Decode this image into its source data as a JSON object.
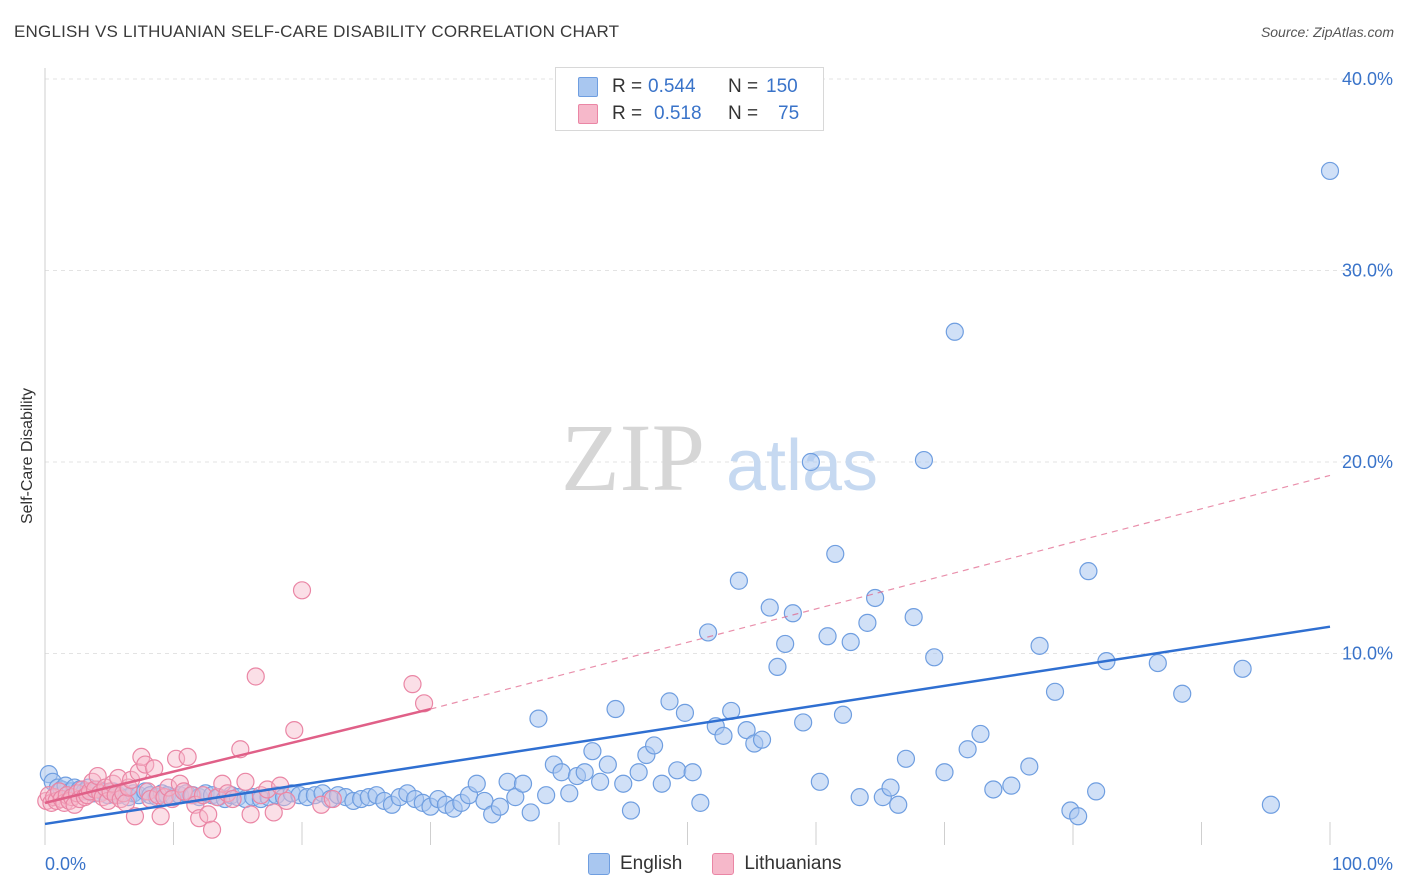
{
  "title": "ENGLISH VS LITHUANIAN SELF-CARE DISABILITY CORRELATION CHART",
  "source": "Source: ZipAtlas.com",
  "watermark": {
    "zip": "ZIP",
    "atlas": "atlas"
  },
  "legend": {
    "english": {
      "r_label": "R =",
      "r_value": "0.544",
      "n_label": "N =",
      "n_value": "150"
    },
    "lithuanian": {
      "r_label": "R =",
      "r_value": "0.518",
      "n_label": "N =",
      "n_value": "75"
    }
  },
  "bottom_legend": {
    "english": "English",
    "lithuanian": "Lithuanians"
  },
  "colors": {
    "english_fill": "#a9c7f0",
    "english_stroke": "#6f9ee0",
    "english_line": "#2f6fd1",
    "lith_fill": "#f6b8ca",
    "lith_stroke": "#ea86a5",
    "lith_line": "#e06088",
    "tick_blue": "#3973c9",
    "grid": "#e3e3e3"
  },
  "chart_data": {
    "type": "scatter",
    "title": "ENGLISH VS LITHUANIAN SELF-CARE DISABILITY CORRELATION CHART",
    "xlabel": "",
    "ylabel": "Self-Care Disability",
    "xlim": [
      0,
      100
    ],
    "ylim": [
      0,
      41
    ],
    "x_tick_labels": [
      "0.0%",
      "100.0%"
    ],
    "y_ticks": [
      10,
      20,
      30,
      40
    ],
    "y_tick_labels": [
      "10.0%",
      "20.0%",
      "30.0%",
      "40.0%"
    ],
    "grid": true,
    "legend_position": "top-center",
    "series": [
      {
        "name": "English",
        "r": 0.544,
        "n": 150,
        "trend": {
          "x": [
            0,
            100
          ],
          "y": [
            1.1,
            11.4
          ]
        },
        "points": [
          [
            0.3,
            3.7
          ],
          [
            0.6,
            3.3
          ],
          [
            1.0,
            3.0
          ],
          [
            1.3,
            2.9
          ],
          [
            1.6,
            3.1
          ],
          [
            2.0,
            2.8
          ],
          [
            2.3,
            3.0
          ],
          [
            2.7,
            2.9
          ],
          [
            3.1,
            2.8
          ],
          [
            3.4,
            3.0
          ],
          [
            3.8,
            2.7
          ],
          [
            4.1,
            2.9
          ],
          [
            4.5,
            2.8
          ],
          [
            4.9,
            2.6
          ],
          [
            5.3,
            2.8
          ],
          [
            5.7,
            2.6
          ],
          [
            6.1,
            2.7
          ],
          [
            6.5,
            2.5
          ],
          [
            6.9,
            2.7
          ],
          [
            7.3,
            2.6
          ],
          [
            7.8,
            2.8
          ],
          [
            8.2,
            2.6
          ],
          [
            8.7,
            2.5
          ],
          [
            9.1,
            2.7
          ],
          [
            9.5,
            2.6
          ],
          [
            10.0,
            2.5
          ],
          [
            10.5,
            2.6
          ],
          [
            11.0,
            2.7
          ],
          [
            11.5,
            2.6
          ],
          [
            12.0,
            2.5
          ],
          [
            12.5,
            2.7
          ],
          [
            13.0,
            2.6
          ],
          [
            13.5,
            2.5
          ],
          [
            14.0,
            2.4
          ],
          [
            14.5,
            2.6
          ],
          [
            15.0,
            2.5
          ],
          [
            15.6,
            2.4
          ],
          [
            16.2,
            2.5
          ],
          [
            16.8,
            2.4
          ],
          [
            17.4,
            2.5
          ],
          [
            18.0,
            2.6
          ],
          [
            18.6,
            2.5
          ],
          [
            19.2,
            2.7
          ],
          [
            19.8,
            2.6
          ],
          [
            20.4,
            2.5
          ],
          [
            21.0,
            2.6
          ],
          [
            21.6,
            2.7
          ],
          [
            22.2,
            2.4
          ],
          [
            22.8,
            2.6
          ],
          [
            23.4,
            2.5
          ],
          [
            24.0,
            2.3
          ],
          [
            24.6,
            2.4
          ],
          [
            25.2,
            2.5
          ],
          [
            25.8,
            2.6
          ],
          [
            26.4,
            2.3
          ],
          [
            27.0,
            2.1
          ],
          [
            27.6,
            2.5
          ],
          [
            28.2,
            2.7
          ],
          [
            28.8,
            2.4
          ],
          [
            29.4,
            2.2
          ],
          [
            30.0,
            2.0
          ],
          [
            30.6,
            2.4
          ],
          [
            31.2,
            2.1
          ],
          [
            31.8,
            1.9
          ],
          [
            32.4,
            2.2
          ],
          [
            33.0,
            2.6
          ],
          [
            33.6,
            3.2
          ],
          [
            34.2,
            2.3
          ],
          [
            34.8,
            1.6
          ],
          [
            35.4,
            2.0
          ],
          [
            36.0,
            3.3
          ],
          [
            36.6,
            2.5
          ],
          [
            37.2,
            3.2
          ],
          [
            37.8,
            1.7
          ],
          [
            38.4,
            6.6
          ],
          [
            39.0,
            2.6
          ],
          [
            39.6,
            4.2
          ],
          [
            40.2,
            3.8
          ],
          [
            40.8,
            2.7
          ],
          [
            41.4,
            3.6
          ],
          [
            42.0,
            3.8
          ],
          [
            42.6,
            4.9
          ],
          [
            43.2,
            3.3
          ],
          [
            43.8,
            4.2
          ],
          [
            44.4,
            7.1
          ],
          [
            45.0,
            3.2
          ],
          [
            45.6,
            1.8
          ],
          [
            46.2,
            3.8
          ],
          [
            46.8,
            4.7
          ],
          [
            47.4,
            5.2
          ],
          [
            48.0,
            3.2
          ],
          [
            48.6,
            7.5
          ],
          [
            49.2,
            3.9
          ],
          [
            49.8,
            6.9
          ],
          [
            50.4,
            3.8
          ],
          [
            51.0,
            2.2
          ],
          [
            51.6,
            11.1
          ],
          [
            52.2,
            6.2
          ],
          [
            52.8,
            5.7
          ],
          [
            53.4,
            7.0
          ],
          [
            54.0,
            13.8
          ],
          [
            54.6,
            6.0
          ],
          [
            55.2,
            5.3
          ],
          [
            55.8,
            5.5
          ],
          [
            56.4,
            12.4
          ],
          [
            57.0,
            9.3
          ],
          [
            57.6,
            10.5
          ],
          [
            58.2,
            12.1
          ],
          [
            59.0,
            6.4
          ],
          [
            59.6,
            20.0
          ],
          [
            60.3,
            3.3
          ],
          [
            60.9,
            10.9
          ],
          [
            61.5,
            15.2
          ],
          [
            62.1,
            6.8
          ],
          [
            62.7,
            10.6
          ],
          [
            63.4,
            2.5
          ],
          [
            64.0,
            11.6
          ],
          [
            64.6,
            12.9
          ],
          [
            65.2,
            2.5
          ],
          [
            65.8,
            3.0
          ],
          [
            66.4,
            2.1
          ],
          [
            67.0,
            4.5
          ],
          [
            67.6,
            11.9
          ],
          [
            68.4,
            20.1
          ],
          [
            69.2,
            9.8
          ],
          [
            70.0,
            3.8
          ],
          [
            70.8,
            26.8
          ],
          [
            71.8,
            5.0
          ],
          [
            72.8,
            5.8
          ],
          [
            73.8,
            2.9
          ],
          [
            75.2,
            3.1
          ],
          [
            76.6,
            4.1
          ],
          [
            77.4,
            10.4
          ],
          [
            78.6,
            8.0
          ],
          [
            79.8,
            1.8
          ],
          [
            80.4,
            1.5
          ],
          [
            81.2,
            14.3
          ],
          [
            81.8,
            2.8
          ],
          [
            82.6,
            9.6
          ],
          [
            86.6,
            9.5
          ],
          [
            88.5,
            7.9
          ],
          [
            93.2,
            9.2
          ],
          [
            95.4,
            2.1
          ],
          [
            100.0,
            35.2
          ]
        ]
      },
      {
        "name": "Lithuanians",
        "r": 0.518,
        "n": 75,
        "trend_solid": {
          "x": [
            0,
            30
          ],
          "y": [
            2.2,
            7.1
          ]
        },
        "trend_dashed": {
          "x": [
            30,
            100
          ],
          "y": [
            7.1,
            19.3
          ]
        },
        "points": [
          [
            0.1,
            2.3
          ],
          [
            0.3,
            2.6
          ],
          [
            0.5,
            2.2
          ],
          [
            0.7,
            2.5
          ],
          [
            0.9,
            2.3
          ],
          [
            1.1,
            2.8
          ],
          [
            1.3,
            2.4
          ],
          [
            1.5,
            2.2
          ],
          [
            1.7,
            2.6
          ],
          [
            1.9,
            2.3
          ],
          [
            2.1,
            2.5
          ],
          [
            2.3,
            2.1
          ],
          [
            2.5,
            2.7
          ],
          [
            2.7,
            2.4
          ],
          [
            2.9,
            2.9
          ],
          [
            3.1,
            2.5
          ],
          [
            3.3,
            2.6
          ],
          [
            3.5,
            2.8
          ],
          [
            3.7,
            3.3
          ],
          [
            3.9,
            2.9
          ],
          [
            4.1,
            3.6
          ],
          [
            4.3,
            2.7
          ],
          [
            4.5,
            2.5
          ],
          [
            4.7,
            3.0
          ],
          [
            4.9,
            2.3
          ],
          [
            5.1,
            2.8
          ],
          [
            5.3,
            3.2
          ],
          [
            5.5,
            2.6
          ],
          [
            5.7,
            3.5
          ],
          [
            5.9,
            2.4
          ],
          [
            6.1,
            2.7
          ],
          [
            6.3,
            2.2
          ],
          [
            6.5,
            3.0
          ],
          [
            6.7,
            3.4
          ],
          [
            7.0,
            1.5
          ],
          [
            7.3,
            3.8
          ],
          [
            7.5,
            4.6
          ],
          [
            7.8,
            4.2
          ],
          [
            8.0,
            2.8
          ],
          [
            8.2,
            2.4
          ],
          [
            8.5,
            4.0
          ],
          [
            8.8,
            2.6
          ],
          [
            9.0,
            1.5
          ],
          [
            9.3,
            2.5
          ],
          [
            9.6,
            3.0
          ],
          [
            9.9,
            2.4
          ],
          [
            10.2,
            4.5
          ],
          [
            10.5,
            3.2
          ],
          [
            10.8,
            2.8
          ],
          [
            11.1,
            4.6
          ],
          [
            11.4,
            2.6
          ],
          [
            11.7,
            2.1
          ],
          [
            12.0,
            1.4
          ],
          [
            12.3,
            2.6
          ],
          [
            12.7,
            1.6
          ],
          [
            13.0,
            0.8
          ],
          [
            13.4,
            2.5
          ],
          [
            13.8,
            3.2
          ],
          [
            14.2,
            2.7
          ],
          [
            14.6,
            2.4
          ],
          [
            15.2,
            5.0
          ],
          [
            15.6,
            3.3
          ],
          [
            16.0,
            1.6
          ],
          [
            16.4,
            8.8
          ],
          [
            16.8,
            2.6
          ],
          [
            17.3,
            2.9
          ],
          [
            17.8,
            1.7
          ],
          [
            18.3,
            3.1
          ],
          [
            18.8,
            2.3
          ],
          [
            19.4,
            6.0
          ],
          [
            20.0,
            13.3
          ],
          [
            21.5,
            2.1
          ],
          [
            22.4,
            2.4
          ],
          [
            28.6,
            8.4
          ],
          [
            29.5,
            7.4
          ]
        ]
      }
    ]
  }
}
